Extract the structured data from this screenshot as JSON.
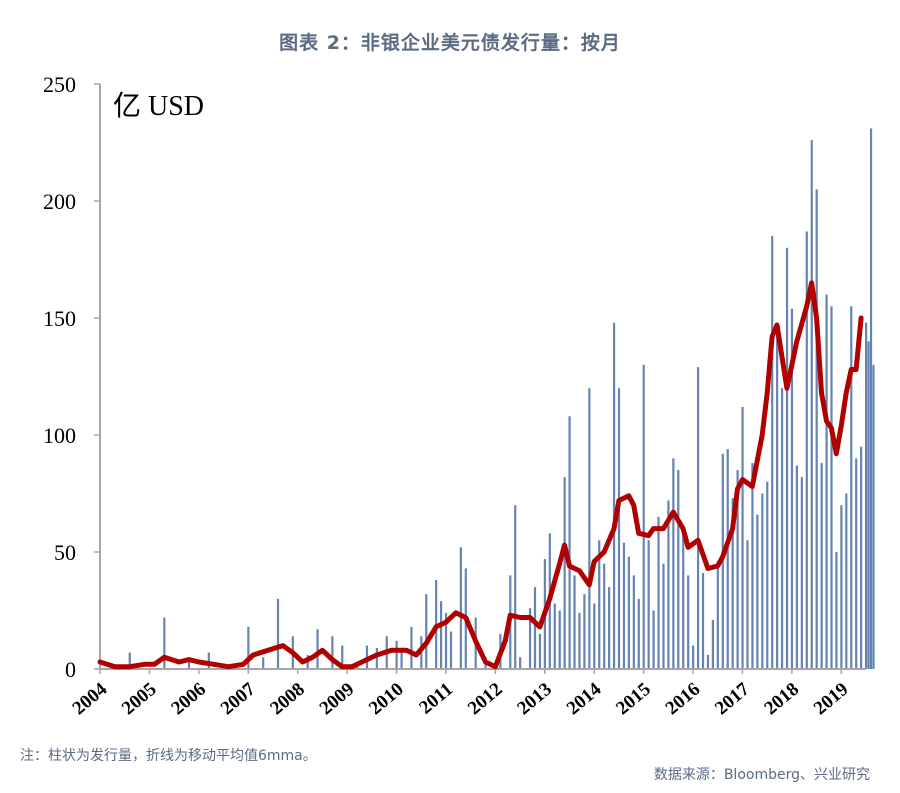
{
  "header": {
    "title": "图表 2：非银企业美元债发行量：按月"
  },
  "footer": {
    "note": "注：柱状为发行量，折线为移动平均值6mma。",
    "source": "数据来源：Bloomberg、兴业研究"
  },
  "colors": {
    "bar": "#4a6fa5",
    "line": "#b00000",
    "axis": "#a6a6a6"
  },
  "chart_data": {
    "type": "bar",
    "unit_label": "亿 USD",
    "ylim": [
      0,
      250
    ],
    "y_ticks": [
      "0",
      "50",
      "100",
      "150",
      "200",
      "250"
    ],
    "x_ticks": [
      "2004",
      "2005",
      "2006",
      "2007",
      "2008",
      "2009",
      "2010",
      "2011",
      "2012",
      "2013",
      "2014",
      "2015",
      "2016",
      "2017",
      "2018",
      "2019"
    ],
    "x_start": 2004.0,
    "x_end": 2019.5,
    "grid": false,
    "series": [
      {
        "kind": "bar",
        "points": [
          [
            2004.6,
            7
          ],
          [
            2005.3,
            22
          ],
          [
            2005.8,
            3
          ],
          [
            2006.2,
            7
          ],
          [
            2006.7,
            1
          ],
          [
            2007.0,
            18
          ],
          [
            2007.3,
            5
          ],
          [
            2007.6,
            30
          ],
          [
            2007.9,
            14
          ],
          [
            2008.2,
            6
          ],
          [
            2008.4,
            17
          ],
          [
            2008.7,
            14
          ],
          [
            2008.9,
            10
          ],
          [
            2009.2,
            1
          ],
          [
            2009.4,
            10
          ],
          [
            2009.6,
            9
          ],
          [
            2009.8,
            14
          ],
          [
            2010.0,
            12
          ],
          [
            2010.1,
            9
          ],
          [
            2010.3,
            18
          ],
          [
            2010.5,
            14
          ],
          [
            2010.6,
            32
          ],
          [
            2010.8,
            38
          ],
          [
            2010.9,
            29
          ],
          [
            2011.0,
            24
          ],
          [
            2011.1,
            16
          ],
          [
            2011.3,
            52
          ],
          [
            2011.4,
            43
          ],
          [
            2011.6,
            22
          ],
          [
            2011.8,
            5
          ],
          [
            2012.1,
            15
          ],
          [
            2012.3,
            40
          ],
          [
            2012.4,
            70
          ],
          [
            2012.5,
            5
          ],
          [
            2012.7,
            26
          ],
          [
            2012.8,
            35
          ],
          [
            2012.9,
            15
          ],
          [
            2013.0,
            47
          ],
          [
            2013.1,
            58
          ],
          [
            2013.2,
            28
          ],
          [
            2013.3,
            25
          ],
          [
            2013.4,
            82
          ],
          [
            2013.5,
            108
          ],
          [
            2013.6,
            40
          ],
          [
            2013.7,
            24
          ],
          [
            2013.8,
            32
          ],
          [
            2013.9,
            120
          ],
          [
            2014.0,
            28
          ],
          [
            2014.1,
            55
          ],
          [
            2014.2,
            45
          ],
          [
            2014.3,
            35
          ],
          [
            2014.4,
            148
          ],
          [
            2014.5,
            120
          ],
          [
            2014.6,
            54
          ],
          [
            2014.7,
            48
          ],
          [
            2014.8,
            40
          ],
          [
            2014.9,
            30
          ],
          [
            2015.0,
            130
          ],
          [
            2015.1,
            55
          ],
          [
            2015.2,
            25
          ],
          [
            2015.3,
            65
          ],
          [
            2015.4,
            45
          ],
          [
            2015.5,
            72
          ],
          [
            2015.6,
            90
          ],
          [
            2015.7,
            85
          ],
          [
            2015.8,
            60
          ],
          [
            2015.9,
            40
          ],
          [
            2016.0,
            10
          ],
          [
            2016.1,
            129
          ],
          [
            2016.2,
            41
          ],
          [
            2016.3,
            6
          ],
          [
            2016.4,
            21
          ],
          [
            2016.5,
            46
          ],
          [
            2016.6,
            92
          ],
          [
            2016.7,
            94
          ],
          [
            2016.8,
            73
          ],
          [
            2016.9,
            85
          ],
          [
            2017.0,
            112
          ],
          [
            2017.1,
            55
          ],
          [
            2017.2,
            88
          ],
          [
            2017.3,
            66
          ],
          [
            2017.4,
            75
          ],
          [
            2017.5,
            80
          ],
          [
            2017.6,
            185
          ],
          [
            2017.7,
            145
          ],
          [
            2017.8,
            120
          ],
          [
            2017.9,
            180
          ],
          [
            2018.0,
            154
          ],
          [
            2018.1,
            87
          ],
          [
            2018.2,
            82
          ],
          [
            2018.3,
            187
          ],
          [
            2018.4,
            226
          ],
          [
            2018.5,
            205
          ],
          [
            2018.6,
            88
          ],
          [
            2018.7,
            160
          ],
          [
            2018.8,
            155
          ],
          [
            2018.9,
            50
          ],
          [
            2019.0,
            70
          ],
          [
            2019.1,
            75
          ],
          [
            2019.2,
            155
          ],
          [
            2019.3,
            90
          ],
          [
            2019.4,
            95
          ],
          [
            2019.5,
            148
          ],
          [
            2019.55,
            140
          ],
          [
            2019.6,
            231
          ],
          [
            2019.65,
            130
          ]
        ]
      },
      {
        "kind": "line",
        "name": "6mma",
        "points": [
          [
            2004.0,
            3
          ],
          [
            2004.3,
            1
          ],
          [
            2004.6,
            1
          ],
          [
            2004.9,
            2
          ],
          [
            2005.1,
            2
          ],
          [
            2005.3,
            5
          ],
          [
            2005.6,
            3
          ],
          [
            2005.8,
            4
          ],
          [
            2006.0,
            3
          ],
          [
            2006.3,
            2
          ],
          [
            2006.6,
            1
          ],
          [
            2006.9,
            2
          ],
          [
            2007.1,
            6
          ],
          [
            2007.4,
            8
          ],
          [
            2007.7,
            10
          ],
          [
            2007.9,
            7
          ],
          [
            2008.1,
            3
          ],
          [
            2008.3,
            5
          ],
          [
            2008.5,
            8
          ],
          [
            2008.7,
            4
          ],
          [
            2008.9,
            1
          ],
          [
            2009.1,
            1
          ],
          [
            2009.3,
            3
          ],
          [
            2009.6,
            6
          ],
          [
            2009.9,
            8
          ],
          [
            2010.2,
            8
          ],
          [
            2010.4,
            6
          ],
          [
            2010.6,
            11
          ],
          [
            2010.8,
            18
          ],
          [
            2011.0,
            20
          ],
          [
            2011.2,
            24
          ],
          [
            2011.4,
            22
          ],
          [
            2011.6,
            12
          ],
          [
            2011.8,
            3
          ],
          [
            2012.0,
            1
          ],
          [
            2012.2,
            12
          ],
          [
            2012.3,
            23
          ],
          [
            2012.5,
            22
          ],
          [
            2012.7,
            22
          ],
          [
            2012.9,
            18
          ],
          [
            2013.1,
            30
          ],
          [
            2013.3,
            45
          ],
          [
            2013.4,
            53
          ],
          [
            2013.5,
            44
          ],
          [
            2013.7,
            42
          ],
          [
            2013.9,
            36
          ],
          [
            2014.0,
            46
          ],
          [
            2014.2,
            50
          ],
          [
            2014.4,
            60
          ],
          [
            2014.5,
            72
          ],
          [
            2014.7,
            74
          ],
          [
            2014.8,
            70
          ],
          [
            2014.9,
            58
          ],
          [
            2015.1,
            57
          ],
          [
            2015.2,
            60
          ],
          [
            2015.4,
            60
          ],
          [
            2015.6,
            67
          ],
          [
            2015.8,
            60
          ],
          [
            2015.9,
            52
          ],
          [
            2016.1,
            55
          ],
          [
            2016.3,
            43
          ],
          [
            2016.5,
            44
          ],
          [
            2016.6,
            48
          ],
          [
            2016.8,
            60
          ],
          [
            2016.9,
            77
          ],
          [
            2017.0,
            81
          ],
          [
            2017.2,
            78
          ],
          [
            2017.4,
            100
          ],
          [
            2017.5,
            118
          ],
          [
            2017.6,
            142
          ],
          [
            2017.7,
            147
          ],
          [
            2017.9,
            120
          ],
          [
            2018.0,
            130
          ],
          [
            2018.1,
            140
          ],
          [
            2018.3,
            155
          ],
          [
            2018.4,
            165
          ],
          [
            2018.5,
            150
          ],
          [
            2018.6,
            118
          ],
          [
            2018.7,
            106
          ],
          [
            2018.8,
            103
          ],
          [
            2018.9,
            92
          ],
          [
            2019.0,
            104
          ],
          [
            2019.1,
            118
          ],
          [
            2019.2,
            128
          ],
          [
            2019.3,
            128
          ],
          [
            2019.4,
            150
          ]
        ]
      }
    ]
  }
}
